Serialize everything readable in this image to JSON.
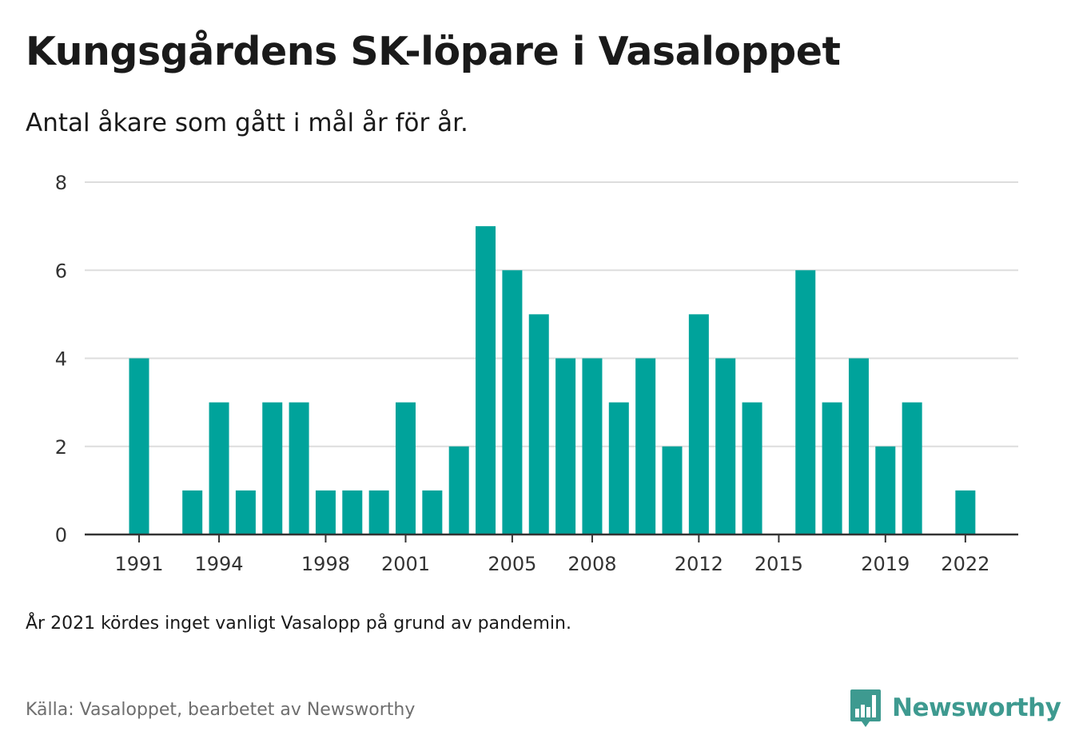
{
  "title": "Kungsgårdens SK-löpare i Vasaloppet",
  "subtitle": "Antal åkare som gått i mål år för år.",
  "note": "År 2021 kördes inget vanligt Vasalopp på grund av pandemin.",
  "source": "Källa: Vasaloppet, bearbetet av Newsworthy",
  "brand": {
    "name": "Newsworthy",
    "icon": "newsworthy-logo-icon"
  },
  "colors": {
    "bar": "#00a39b",
    "grid": "#dddddd",
    "axis": "#333333",
    "brand": "#3e9a90"
  },
  "chart_data": {
    "type": "bar",
    "categories": [
      "1991",
      "1992",
      "1993",
      "1994",
      "1995",
      "1996",
      "1997",
      "1998",
      "1999",
      "2000",
      "2001",
      "2002",
      "2003",
      "2004",
      "2005",
      "2006",
      "2007",
      "2008",
      "2009",
      "2010",
      "2011",
      "2012",
      "2013",
      "2014",
      "2015",
      "2016",
      "2017",
      "2018",
      "2019",
      "2020",
      "2021",
      "2022"
    ],
    "values": [
      4,
      0,
      1,
      3,
      1,
      3,
      3,
      1,
      1,
      1,
      3,
      1,
      2,
      7,
      6,
      5,
      4,
      4,
      3,
      4,
      2,
      5,
      4,
      3,
      0,
      6,
      3,
      4,
      2,
      3,
      0,
      1
    ],
    "x_tick_labels": [
      "1991",
      "1994",
      "1998",
      "2001",
      "2005",
      "2008",
      "2012",
      "2015",
      "2019",
      "2022"
    ],
    "y_ticks": [
      0,
      2,
      4,
      6,
      8
    ],
    "ylim": [
      0,
      8
    ],
    "grid": true,
    "xlabel": "",
    "ylabel": ""
  }
}
